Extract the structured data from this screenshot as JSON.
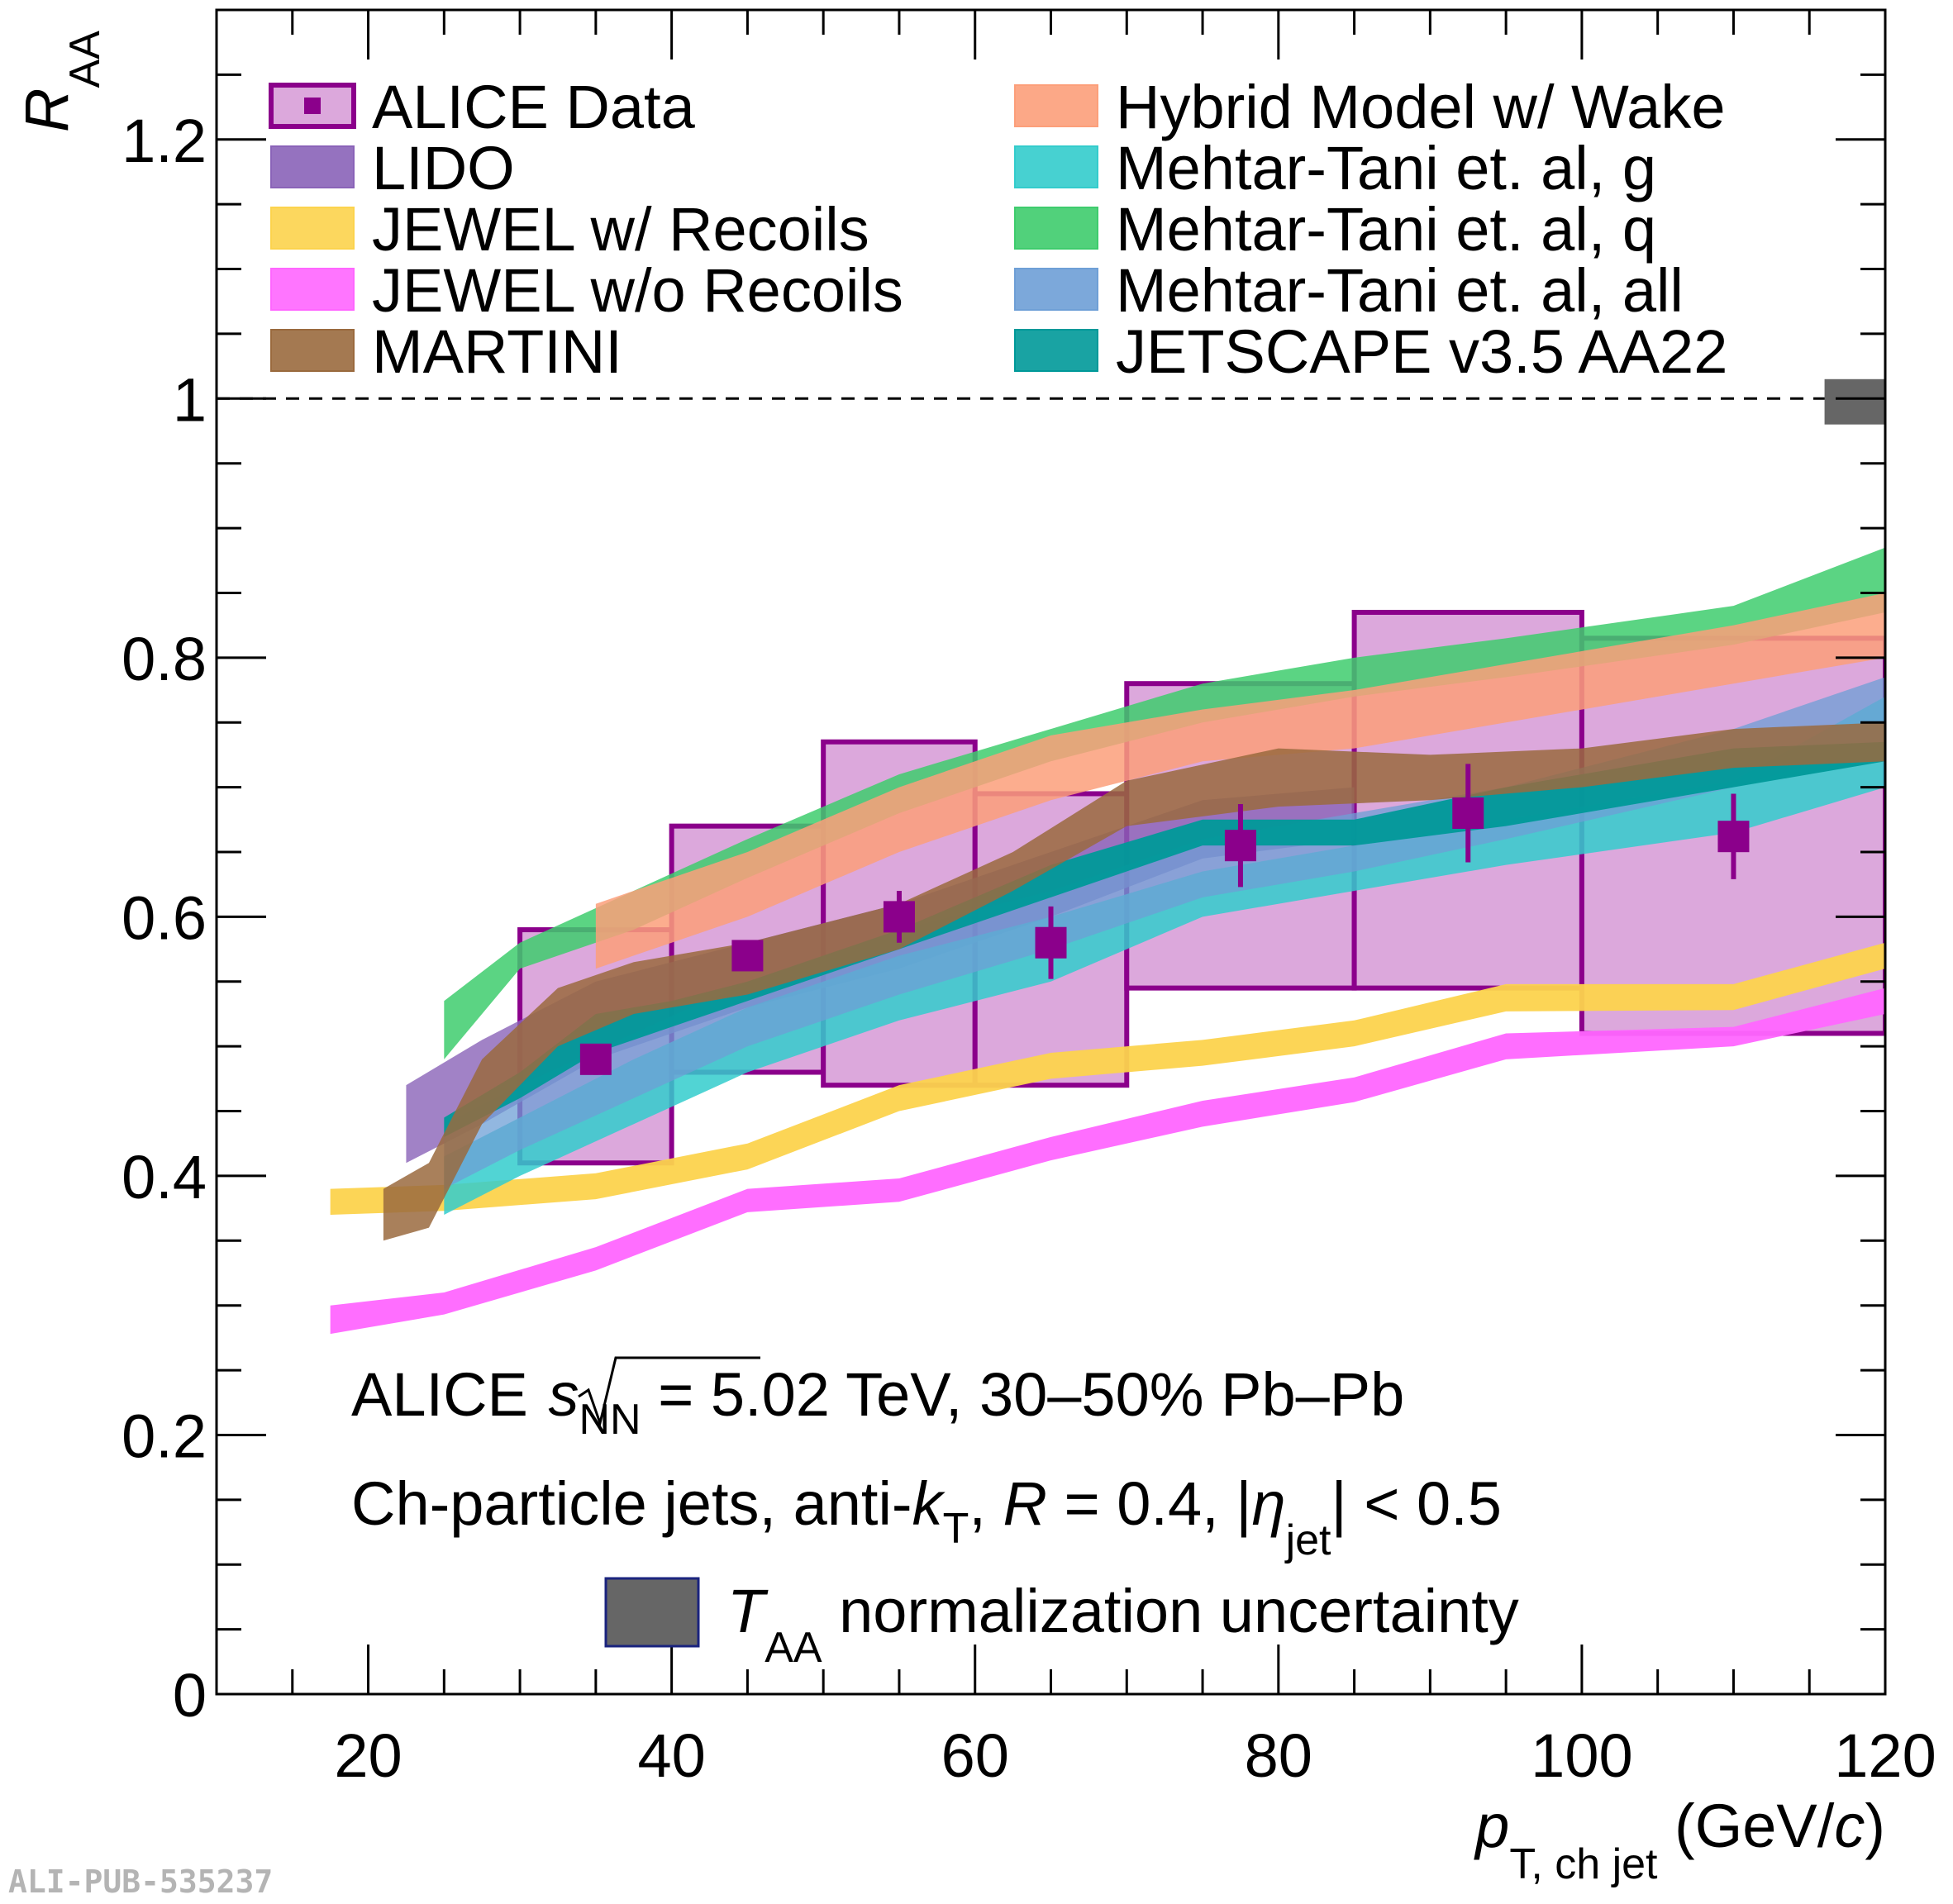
{
  "watermark": "ALI-PUB-535237",
  "chart_data": {
    "type": "area",
    "xlabel": {
      "main": "p",
      "sub": "T, ch jet",
      "unit_pre": " (GeV/",
      "unit_italic": "c",
      "unit_post": ")"
    },
    "ylabel": {
      "main": "R",
      "sub": "AA"
    },
    "xlim": [
      10,
      120
    ],
    "ylim": [
      0,
      1.3
    ],
    "x_ticks": [
      20,
      40,
      60,
      80,
      100,
      120
    ],
    "x_tick_labels": [
      "20",
      "40",
      "60",
      "80",
      "100",
      "120"
    ],
    "y_ticks": [
      0,
      0.2,
      0.4,
      0.6,
      0.8,
      1,
      1.2
    ],
    "y_tick_labels": [
      "0",
      "0.2",
      "0.4",
      "0.6",
      "0.8",
      "1",
      "1.2"
    ],
    "reference_line": 1,
    "taa_box": {
      "x": [
        116,
        120
      ],
      "y": [
        0.98,
        1.015
      ],
      "color": "#666666"
    },
    "annotations": {
      "line1_a": "ALICE",
      "line1_s": "s",
      "line1_nn": "NN",
      "line1_b": " = 5.02 TeV, 30–50% Pb–Pb",
      "line2_a": "Ch-particle jets, anti-",
      "line2_k": "k",
      "line2_t": "T",
      "line2_b": ", ",
      "line2_r": "R",
      "line2_c": " = 0.4, |",
      "line2_eta": "η",
      "line2_jet": "jet",
      "line2_d": "| < 0.5",
      "taa_T": "T",
      "taa_AA": "AA",
      "taa_text": " normalization uncertainty"
    },
    "legend": {
      "left": [
        {
          "label": "ALICE Data",
          "color": "#8b008b",
          "kind": "data"
        },
        {
          "label": "LIDO",
          "color": "#8a63b8",
          "kind": "band"
        },
        {
          "label": "JEWEL w/ Recoils",
          "color": "#fcd34d",
          "kind": "band"
        },
        {
          "label": "JEWEL w/o Recoils",
          "color": "#ff66ff",
          "kind": "band"
        },
        {
          "label": "MARTINI",
          "color": "#9a6a3e",
          "kind": "band"
        }
      ],
      "right": [
        {
          "label": "Hybrid Model w/ Wake",
          "color": "#fc9f7a",
          "kind": "band"
        },
        {
          "label": "Mehtar-Tani et. al, g",
          "color": "#33cccc",
          "kind": "band"
        },
        {
          "label": "Mehtar-Tani et. al, q",
          "color": "#3ecc6d",
          "kind": "band"
        },
        {
          "label": "Mehtar-Tani et. al, all",
          "color": "#6e9fd6",
          "kind": "band"
        },
        {
          "label": "JETSCAPE v3.5 AA22",
          "color": "#009999",
          "kind": "band"
        }
      ]
    },
    "data": {
      "name": "ALICE Data",
      "color": "#8b008b",
      "sys_fill": "#dca8dc",
      "points": [
        {
          "x": 35,
          "y": 0.49,
          "xlo": 30,
          "xhi": 40,
          "stat": 0.012,
          "syslo": 0.41,
          "syshi": 0.59
        },
        {
          "x": 45,
          "y": 0.57,
          "xlo": 40,
          "xhi": 50,
          "stat": 0.01,
          "syslo": 0.48,
          "syshi": 0.67
        },
        {
          "x": 55,
          "y": 0.6,
          "xlo": 50,
          "xhi": 60,
          "stat": 0.02,
          "syslo": 0.47,
          "syshi": 0.735
        },
        {
          "x": 65,
          "y": 0.58,
          "xlo": 60,
          "xhi": 70,
          "stat": 0.028,
          "syslo": 0.47,
          "syshi": 0.695
        },
        {
          "x": 77.5,
          "y": 0.655,
          "xlo": 70,
          "xhi": 85,
          "stat": 0.032,
          "syslo": 0.545,
          "syshi": 0.78
        },
        {
          "x": 92.5,
          "y": 0.68,
          "xlo": 85,
          "xhi": 100,
          "stat": 0.038,
          "syslo": 0.545,
          "syshi": 0.835
        },
        {
          "x": 110,
          "y": 0.662,
          "xlo": 100,
          "xhi": 120,
          "stat": 0.033,
          "syslo": 0.51,
          "syshi": 0.815
        }
      ]
    },
    "series": [
      {
        "name": "JEWEL w/o Recoils",
        "color": "#ff66ff",
        "opacity": 0.95,
        "x": [
          17.5,
          25,
          35,
          45,
          55,
          65,
          75,
          85,
          95,
          110,
          120
        ],
        "lo": [
          0.278,
          0.293,
          0.327,
          0.372,
          0.38,
          0.412,
          0.438,
          0.457,
          0.49,
          0.5,
          0.525
        ],
        "hi": [
          0.3,
          0.31,
          0.345,
          0.39,
          0.398,
          0.43,
          0.458,
          0.476,
          0.51,
          0.515,
          0.545
        ]
      },
      {
        "name": "JEWEL w/ Recoils",
        "color": "#fcd34d",
        "opacity": 0.95,
        "x": [
          17.5,
          25,
          35,
          45,
          55,
          65,
          75,
          85,
          95,
          110,
          120
        ],
        "lo": [
          0.37,
          0.373,
          0.382,
          0.405,
          0.45,
          0.475,
          0.485,
          0.5,
          0.527,
          0.528,
          0.56
        ],
        "hi": [
          0.39,
          0.393,
          0.402,
          0.425,
          0.47,
          0.495,
          0.505,
          0.52,
          0.548,
          0.548,
          0.58
        ]
      },
      {
        "name": "LIDO",
        "color": "#8a63b8",
        "opacity": 0.8,
        "x": [
          22.5,
          27.5,
          35,
          45,
          55,
          65,
          75,
          85
        ],
        "lo": [
          0.41,
          0.44,
          0.49,
          0.53,
          0.56,
          0.6,
          0.645,
          0.66
        ],
        "hi": [
          0.47,
          0.505,
          0.55,
          0.58,
          0.61,
          0.65,
          0.69,
          0.7
        ]
      },
      {
        "name": "Mehtar-Tani et. al, q",
        "color": "#3ecc6d",
        "opacity": 0.85,
        "x": [
          25,
          30,
          37.5,
          45,
          55,
          65,
          75,
          85,
          95,
          110,
          120
        ],
        "lo": [
          0.49,
          0.56,
          0.59,
          0.63,
          0.68,
          0.72,
          0.75,
          0.77,
          0.785,
          0.81,
          0.835
        ],
        "hi": [
          0.535,
          0.58,
          0.62,
          0.66,
          0.71,
          0.745,
          0.78,
          0.8,
          0.815,
          0.84,
          0.885
        ]
      },
      {
        "name": "Hybrid Model w/ Wake",
        "color": "#fc9f7a",
        "opacity": 0.85,
        "x": [
          35,
          40,
          45,
          55,
          65,
          75,
          85,
          95,
          110,
          120
        ],
        "lo": [
          0.56,
          0.58,
          0.6,
          0.65,
          0.69,
          0.72,
          0.73,
          0.75,
          0.78,
          0.8
        ],
        "hi": [
          0.61,
          0.63,
          0.65,
          0.7,
          0.74,
          0.76,
          0.775,
          0.795,
          0.825,
          0.85
        ]
      },
      {
        "name": "Mehtar-Tani et. al, g",
        "color": "#33cccc",
        "opacity": 0.85,
        "x": [
          25,
          30,
          37.5,
          45,
          55,
          65,
          75,
          85,
          95,
          110,
          120
        ],
        "lo": [
          0.37,
          0.4,
          0.44,
          0.48,
          0.52,
          0.55,
          0.6,
          0.62,
          0.64,
          0.665,
          0.7
        ],
        "hi": [
          0.415,
          0.445,
          0.49,
          0.53,
          0.57,
          0.6,
          0.635,
          0.655,
          0.675,
          0.705,
          0.77
        ]
      },
      {
        "name": "Mehtar-Tani et. al, all",
        "color": "#6e9fd6",
        "opacity": 0.75,
        "x": [
          25,
          30,
          37.5,
          45,
          55,
          65,
          75,
          85,
          95,
          110,
          120
        ],
        "lo": [
          0.39,
          0.42,
          0.46,
          0.5,
          0.54,
          0.575,
          0.615,
          0.635,
          0.66,
          0.7,
          0.735
        ],
        "hi": [
          0.44,
          0.47,
          0.51,
          0.55,
          0.59,
          0.62,
          0.66,
          0.68,
          0.7,
          0.745,
          0.785
        ]
      },
      {
        "name": "JETSCAPE v3.5 AA22",
        "color": "#009999",
        "opacity": 0.95,
        "x": [
          25,
          30,
          35,
          40,
          45,
          55,
          65,
          75,
          85,
          95,
          110,
          120
        ],
        "lo": [
          0.43,
          0.46,
          0.495,
          0.515,
          0.535,
          0.575,
          0.615,
          0.655,
          0.655,
          0.67,
          0.7,
          0.72
        ],
        "hi": [
          0.445,
          0.48,
          0.525,
          0.535,
          0.55,
          0.59,
          0.64,
          0.675,
          0.675,
          0.7,
          0.73,
          0.735
        ]
      },
      {
        "name": "MARTINI",
        "color": "#9a6a3e",
        "opacity": 0.85,
        "x": [
          21,
          24,
          27.5,
          32.5,
          37.5,
          45,
          55,
          62.5,
          70,
          80,
          90,
          100,
          110,
          120
        ],
        "lo": [
          0.35,
          0.36,
          0.44,
          0.5,
          0.525,
          0.54,
          0.575,
          0.62,
          0.67,
          0.685,
          0.69,
          0.7,
          0.715,
          0.72
        ],
        "hi": [
          0.39,
          0.41,
          0.49,
          0.545,
          0.565,
          0.58,
          0.61,
          0.65,
          0.705,
          0.73,
          0.725,
          0.73,
          0.745,
          0.75
        ]
      }
    ]
  }
}
